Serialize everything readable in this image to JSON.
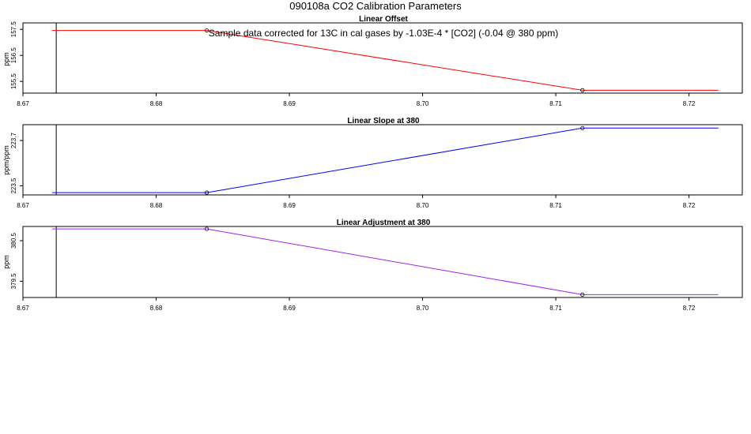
{
  "page": {
    "title": "090108a   CO2 Calibration Parameters"
  },
  "chart_data": [
    {
      "type": "line",
      "title": "Linear Offset",
      "xlabel": "",
      "ylabel": "ppm",
      "annotation": "Sample data corrected for 13C in cal gases by -1.03E-4 * [CO2] (-0.04 @ 380 ppm)",
      "xlim": [
        8.67,
        8.724
      ],
      "ylim": [
        155.05,
        157.75
      ],
      "x_ticks": [
        8.67,
        8.68,
        8.69,
        8.7,
        8.71,
        8.72
      ],
      "x_tick_labels": [
        "8.67",
        "8.68",
        "8.69",
        "8.70",
        "8.71",
        "8.72"
      ],
      "y_ticks": [
        155.5,
        156.5,
        157.5
      ],
      "y_tick_labels": [
        "155.5",
        "156.5",
        "157.5"
      ],
      "vline_x": 8.6725,
      "color": "#ff0000",
      "x": [
        8.6722,
        8.6838,
        8.712,
        8.7222
      ],
      "y": [
        157.46,
        157.46,
        155.16,
        155.16
      ],
      "points": [
        1,
        2
      ]
    },
    {
      "type": "line",
      "title": "Linear Slope at 380",
      "xlabel": "",
      "ylabel": "ppm/ppm",
      "xlim": [
        8.67,
        8.724
      ],
      "ylim": [
        223.46,
        223.77
      ],
      "x_ticks": [
        8.67,
        8.68,
        8.69,
        8.7,
        8.71,
        8.72
      ],
      "x_tick_labels": [
        "8.67",
        "8.68",
        "8.69",
        "8.70",
        "8.71",
        "8.72"
      ],
      "y_ticks": [
        223.5,
        223.7
      ],
      "y_tick_labels": [
        "223.5",
        "223.7"
      ],
      "vline_x": 8.6725,
      "color": "#0000ff",
      "x": [
        8.6722,
        8.6838,
        8.712,
        8.7222
      ],
      "y": [
        223.47,
        223.47,
        223.755,
        223.755
      ],
      "points": [
        1,
        2
      ]
    },
    {
      "type": "line",
      "title": "Linear Adjustment at 380",
      "xlabel": "",
      "ylabel": "ppm",
      "xlim": [
        8.67,
        8.724
      ],
      "ylim": [
        379.1,
        380.85
      ],
      "x_ticks": [
        8.67,
        8.68,
        8.69,
        8.7,
        8.71,
        8.72
      ],
      "x_tick_labels": [
        "8.67",
        "8.68",
        "8.69",
        "8.70",
        "8.71",
        "8.72"
      ],
      "y_ticks": [
        379.5,
        380.5
      ],
      "y_tick_labels": [
        "379.5",
        "380.5"
      ],
      "vline_x": 8.6725,
      "color": "#a020f0",
      "x": [
        8.6722,
        8.6838,
        8.712,
        8.7222
      ],
      "y": [
        380.79,
        380.79,
        379.17,
        379.17
      ],
      "points": [
        1,
        2
      ]
    }
  ]
}
